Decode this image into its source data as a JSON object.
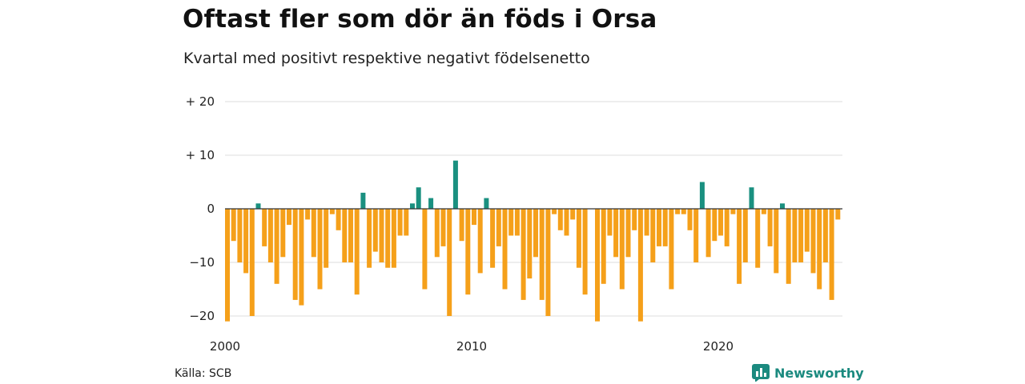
{
  "header": {
    "title": "Oftast fler som dör än föds i Orsa",
    "subtitle": "Kvartal med positivt respektive negativt födelsenetto"
  },
  "footer": {
    "source": "Källa: SCB",
    "brand": "Newsworthy",
    "brand_icon": "bar-chart-logo-icon"
  },
  "chart_data": {
    "type": "bar",
    "title": "Oftast fler som dör än föds i Orsa",
    "subtitle": "Kvartal med positivt respektive negativt födelsenetto",
    "xlabel": "",
    "ylabel": "",
    "x_start": "2000-Q1",
    "x_ticks": [
      {
        "label": "2000",
        "quarter_index": 0
      },
      {
        "label": "2010",
        "quarter_index": 40
      },
      {
        "label": "2020",
        "quarter_index": 80
      }
    ],
    "y_ticks": [
      {
        "label": "+ 20",
        "value": 20
      },
      {
        "label": "+ 10",
        "value": 10
      },
      {
        "label": "0",
        "value": 0
      },
      {
        "label": "−10",
        "value": -10
      },
      {
        "label": "−20",
        "value": -20
      }
    ],
    "ylim": [
      -21,
      20
    ],
    "grid": true,
    "colors": {
      "positive": "#1a9080",
      "negative": "#f5a01a",
      "grid": "#dddddd",
      "baseline": "#333333"
    },
    "values": [
      -21,
      -6,
      -10,
      -12,
      -20,
      1,
      -7,
      -10,
      -14,
      -9,
      -3,
      -17,
      -18,
      -2,
      -9,
      -15,
      -11,
      -1,
      -4,
      -10,
      -10,
      -16,
      3,
      -11,
      -8,
      -10,
      -11,
      -11,
      -5,
      -5,
      1,
      4,
      -15,
      2,
      -9,
      -7,
      -20,
      9,
      -6,
      -16,
      -3,
      -12,
      2,
      -11,
      -7,
      -15,
      -5,
      -5,
      -17,
      -13,
      -9,
      -17,
      -20,
      -1,
      -4,
      -5,
      -2,
      -11,
      -16,
      0,
      -21,
      -14,
      -5,
      -9,
      -15,
      -9,
      -4,
      -21,
      -5,
      -10,
      -7,
      -7,
      -15,
      -1,
      -1,
      -4,
      -10,
      5,
      -9,
      -6,
      -5,
      -7,
      -1,
      -14,
      -10,
      4,
      -11,
      -1,
      -7,
      -12,
      1,
      -14,
      -10,
      -10,
      -8,
      -12,
      -15,
      -10,
      -17,
      -2
    ]
  }
}
